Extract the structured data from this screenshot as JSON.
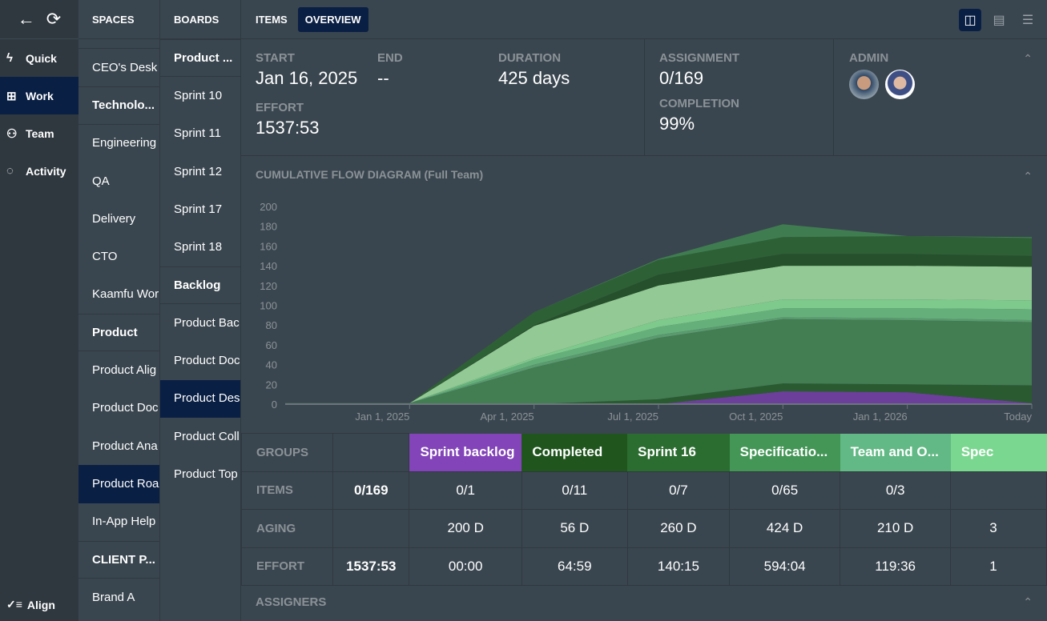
{
  "nav": {
    "items": [
      {
        "label": "Quick",
        "icon": "lightning-icon"
      },
      {
        "label": "Work",
        "icon": "board-icon",
        "selected": true
      },
      {
        "label": "Team",
        "icon": "team-icon"
      },
      {
        "label": "Activity",
        "icon": "chat-icon"
      }
    ],
    "bottom": {
      "label": "Align",
      "icon": "checklist-icon"
    }
  },
  "spaces": {
    "title": "SPACES",
    "items": [
      {
        "label": "CEO's Desk"
      },
      {
        "label": "Technolo...",
        "bold": true
      },
      {
        "label": "Engineering"
      },
      {
        "label": "QA"
      },
      {
        "label": "Delivery"
      },
      {
        "label": "CTO"
      },
      {
        "label": "Kaamfu Wor"
      },
      {
        "label": "Product",
        "bold": true
      },
      {
        "label": "Product Alig"
      },
      {
        "label": "Product Doc"
      },
      {
        "label": "Product Ana"
      },
      {
        "label": "Product Roa",
        "selected": true
      },
      {
        "label": "In-App Help"
      },
      {
        "label": "CLIENT P...",
        "bold": true
      },
      {
        "label": "Brand A"
      }
    ]
  },
  "boards": {
    "title": "BOARDS",
    "items": [
      {
        "label": "Product ...",
        "bold": true
      },
      {
        "label": "Sprint 10"
      },
      {
        "label": "Sprint 11"
      },
      {
        "label": "Sprint 12"
      },
      {
        "label": "Sprint 17"
      },
      {
        "label": "Sprint 18"
      },
      {
        "label": "Backlog",
        "bold": true
      },
      {
        "label": "Product Bac"
      },
      {
        "label": "Product Doc"
      },
      {
        "label": "Product Des",
        "selected": true
      },
      {
        "label": "Product Coll"
      },
      {
        "label": "Product Top"
      }
    ]
  },
  "tabs": [
    {
      "label": "ITEMS"
    },
    {
      "label": "OVERVIEW",
      "selected": true
    }
  ],
  "stats": {
    "start_label": "START",
    "start": "Jan 16, 2025",
    "end_label": "END",
    "end": "--",
    "duration_label": "DURATION",
    "duration": "425 days",
    "effort_label": "EFFORT",
    "effort": "1537:53",
    "assignment_label": "ASSIGNMENT",
    "assignment": "0/169",
    "completion_label": "COMPLETION",
    "completion": "99%",
    "admin_label": "ADMIN"
  },
  "chart_title": "CUMULATIVE FLOW DIAGRAM (Full Team)",
  "chart_data": {
    "type": "area",
    "stacked": true,
    "x": [
      "2024-10-01",
      "2025-01-01",
      "2025-04-01",
      "2025-07-01",
      "2025-10-01",
      "2026-01-01",
      "Today"
    ],
    "xticks": [
      "Jan 1, 2025",
      "Apr 1, 2025",
      "Jul 1, 2025",
      "Oct 1, 2025",
      "Jan 1, 2026",
      "Today"
    ],
    "yticks": [
      0,
      20,
      40,
      60,
      80,
      100,
      120,
      140,
      160,
      180,
      200
    ],
    "ylim": [
      0,
      200
    ],
    "series": [
      {
        "color": "#6b3f9a",
        "values": [
          0,
          0,
          0,
          0,
          13,
          12,
          1
        ]
      },
      {
        "color": "#2a5a30",
        "values": [
          0,
          0,
          0,
          5,
          8,
          8,
          18
        ]
      },
      {
        "color": "#437d52",
        "values": [
          1,
          1,
          37,
          62,
          65,
          65,
          64
        ]
      },
      {
        "color": "#5a9a6e",
        "values": [
          0,
          0,
          3,
          3,
          2,
          2,
          2
        ]
      },
      {
        "color": "#65b07a",
        "values": [
          0,
          0,
          5,
          8,
          9,
          10,
          11
        ]
      },
      {
        "color": "#7ec98c",
        "values": [
          0,
          0,
          2,
          7,
          9,
          9,
          9
        ]
      },
      {
        "color": "#93c994",
        "values": [
          0,
          0,
          32,
          35,
          34,
          34,
          34
        ]
      },
      {
        "color": "#26502b",
        "values": [
          0,
          0,
          1,
          11,
          12,
          12,
          11
        ]
      },
      {
        "color": "#2e6035",
        "values": [
          0,
          0,
          13,
          15,
          17,
          18,
          18
        ]
      },
      {
        "color": "#3f7d50",
        "values": [
          0,
          0,
          0,
          1,
          13,
          0,
          1
        ]
      }
    ]
  },
  "table": {
    "groups_label": "GROUPS",
    "items_label": "ITEMS",
    "aging_label": "AGING",
    "effort_label": "EFFORT",
    "items_total": "0/169",
    "effort_total": "1537:53",
    "groups": [
      {
        "name": "Sprint backlog",
        "color": "#8244b8",
        "items": "0/1",
        "aging": "200 D",
        "effort": "00:00"
      },
      {
        "name": "Completed",
        "color": "#20561e",
        "items": "0/11",
        "aging": "56 D",
        "effort": "64:59"
      },
      {
        "name": "Sprint 16",
        "color": "#2b6c30",
        "items": "0/7",
        "aging": "260 D",
        "effort": "140:15"
      },
      {
        "name": "Specificatio...",
        "color": "#439656",
        "items": "0/65",
        "aging": "424 D",
        "effort": "594:04"
      },
      {
        "name": "Team and O...",
        "color": "#62b985",
        "items": "0/3",
        "aging": "210 D",
        "effort": "119:36"
      },
      {
        "name": "Spec",
        "color": "#79d78f",
        "items": "",
        "aging": "3",
        "effort": "1"
      }
    ]
  },
  "assigners_label": "ASSIGNERS"
}
